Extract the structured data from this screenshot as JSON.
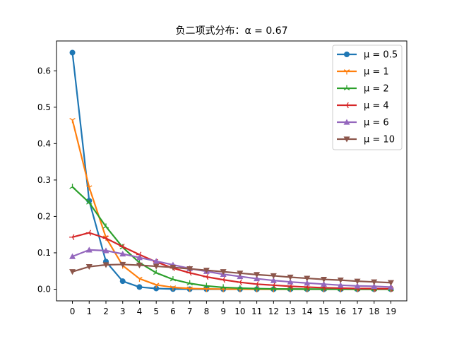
{
  "chart_data": {
    "type": "line",
    "title": "负二项式分布：α = 0.67",
    "xlabel": "",
    "ylabel": "",
    "x": [
      0,
      1,
      2,
      3,
      4,
      5,
      6,
      7,
      8,
      9,
      10,
      11,
      12,
      13,
      14,
      15,
      16,
      17,
      18,
      19
    ],
    "xlim": [
      -0.95,
      19.95
    ],
    "ylim": [
      -0.032,
      0.682
    ],
    "yticks": [
      0.0,
      0.1,
      0.2,
      0.3,
      0.4,
      0.5,
      0.6
    ],
    "ytick_labels": [
      "0.0",
      "0.1",
      "0.2",
      "0.3",
      "0.4",
      "0.5",
      "0.6"
    ],
    "grid": false,
    "legend_position": "top-right",
    "series": [
      {
        "name": "μ = 0.5",
        "color": "#1f77b4",
        "marker": "circle",
        "values": [
          0.65,
          0.243,
          0.076,
          0.022,
          0.006,
          0.002,
          0.0005,
          0.0001,
          0,
          0,
          0,
          0,
          0,
          0,
          0,
          0,
          0,
          0,
          0,
          0
        ]
      },
      {
        "name": "μ = 1",
        "color": "#ff7f0e",
        "marker": "tri_down",
        "values": [
          0.465,
          0.28,
          0.142,
          0.065,
          0.029,
          0.012,
          0.005,
          0.002,
          0.0009,
          0.0004,
          0.0001,
          0,
          0,
          0,
          0,
          0,
          0,
          0,
          0,
          0
        ]
      },
      {
        "name": "μ = 2",
        "color": "#2ca02c",
        "marker": "tri_up",
        "values": [
          0.281,
          0.238,
          0.172,
          0.115,
          0.073,
          0.045,
          0.027,
          0.016,
          0.009,
          0.005,
          0.003,
          0.0017,
          0.0009,
          0.0005,
          0.0003,
          0.0002,
          0.0001,
          0,
          0,
          0
        ]
      },
      {
        "name": "μ = 4",
        "color": "#d62728",
        "marker": "tri_left",
        "values": [
          0.143,
          0.155,
          0.14,
          0.117,
          0.095,
          0.075,
          0.058,
          0.045,
          0.034,
          0.026,
          0.019,
          0.014,
          0.011,
          0.008,
          0.006,
          0.004,
          0.003,
          0.002,
          0.0017,
          0.0012
        ]
      },
      {
        "name": "μ = 6",
        "color": "#9467bd",
        "marker": "triangle_up",
        "values": [
          0.09,
          0.108,
          0.106,
          0.097,
          0.087,
          0.077,
          0.067,
          0.057,
          0.049,
          0.041,
          0.035,
          0.029,
          0.024,
          0.02,
          0.017,
          0.014,
          0.011,
          0.009,
          0.008,
          0.006
        ]
      },
      {
        "name": "μ = 10",
        "color": "#8c564b",
        "marker": "triangle_down",
        "values": [
          0.048,
          0.062,
          0.067,
          0.068,
          0.066,
          0.063,
          0.06,
          0.056,
          0.052,
          0.048,
          0.044,
          0.04,
          0.037,
          0.033,
          0.03,
          0.027,
          0.025,
          0.022,
          0.02,
          0.018
        ]
      }
    ]
  }
}
